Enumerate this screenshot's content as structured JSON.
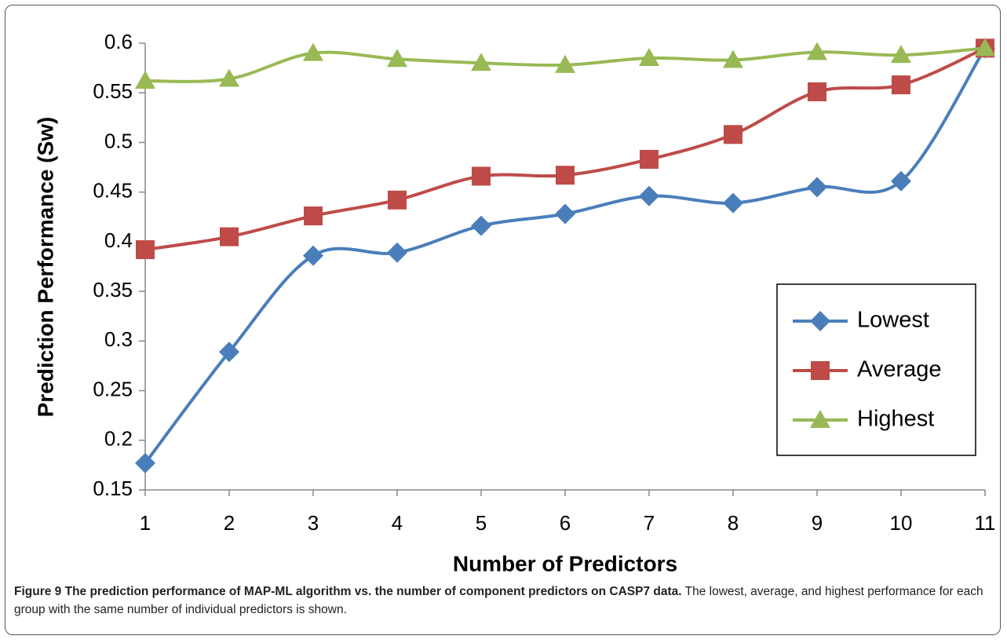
{
  "chart_data": {
    "type": "line",
    "x_label": "Number of Predictors",
    "y_label": "Prediction Performance (Sw)",
    "x": [
      1,
      2,
      3,
      4,
      5,
      6,
      7,
      8,
      9,
      10,
      11
    ],
    "xlim": [
      1,
      11
    ],
    "xticks": [
      1,
      2,
      3,
      4,
      5,
      6,
      7,
      8,
      9,
      10,
      11
    ],
    "ylim": [
      0.15,
      0.6
    ],
    "yticks": [
      0.15,
      0.2,
      0.25,
      0.3,
      0.35,
      0.4,
      0.45,
      0.5,
      0.55,
      0.6
    ],
    "legend": "right",
    "series": [
      {
        "name": "Lowest",
        "color": "#4a7ebb",
        "marker": "diamond",
        "values": [
          0.177,
          0.289,
          0.386,
          0.389,
          0.416,
          0.428,
          0.446,
          0.439,
          0.455,
          0.461,
          0.595
        ]
      },
      {
        "name": "Average",
        "color": "#be4b48",
        "marker": "square",
        "values": [
          0.392,
          0.405,
          0.426,
          0.442,
          0.466,
          0.467,
          0.483,
          0.508,
          0.551,
          0.558,
          0.595
        ]
      },
      {
        "name": "Highest",
        "color": "#98b954",
        "marker": "triangle",
        "values": [
          0.562,
          0.564,
          0.59,
          0.584,
          0.58,
          0.578,
          0.585,
          0.583,
          0.591,
          0.588,
          0.595
        ]
      }
    ]
  },
  "caption": {
    "title": "Figure 9 The prediction performance of MAP-ML algorithm vs. the number of component predictors on CASP7 data.",
    "text": "The lowest, average, and highest performance for each group with the same number of individual predictors is shown."
  }
}
